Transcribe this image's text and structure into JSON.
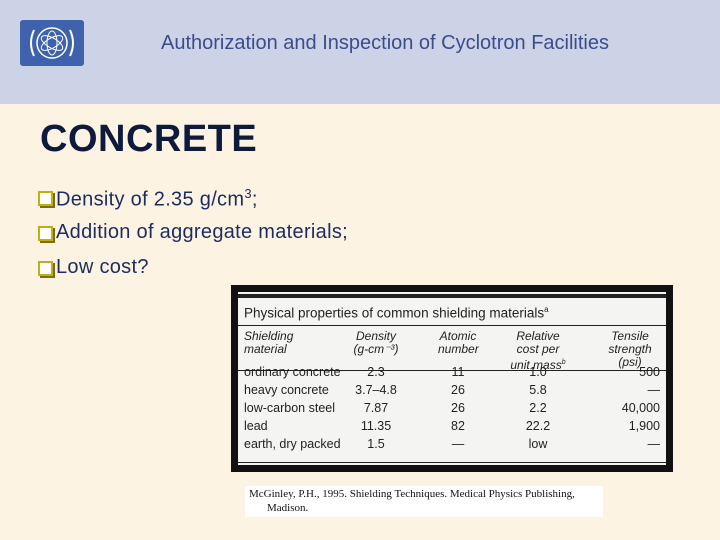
{
  "header": {
    "title": "Authorization and Inspection of Cyclotron Facilities"
  },
  "slide": {
    "heading": "CONCRETE",
    "bullets": [
      {
        "text": "Density of 2.35 g/cm",
        "sup": "3",
        "tail": ";"
      },
      {
        "text": "Addition of aggregate materials;"
      },
      {
        "text": "Low cost?"
      }
    ]
  },
  "table": {
    "title": "Physical properties of common shielding materials",
    "title_note": "a",
    "columns": [
      {
        "lines": [
          "Shielding",
          "material"
        ]
      },
      {
        "lines": [
          "Density",
          "(g-cm⁻³)"
        ]
      },
      {
        "lines": [
          "Atomic",
          "number"
        ]
      },
      {
        "lines": [
          "Relative",
          "cost per",
          "unit mass"
        ],
        "note": "b"
      },
      {
        "lines": [
          "Tensile",
          "strength",
          "(psi)"
        ]
      }
    ],
    "rows": [
      [
        "ordinary concrete",
        "2.3",
        "11",
        "1.0",
        "500"
      ],
      [
        "heavy concrete",
        "3.7–4.8",
        "26",
        "5.8",
        "—"
      ],
      [
        "low-carbon steel",
        "7.87",
        "26",
        "2.2",
        "40,000"
      ],
      [
        "lead",
        "11.35",
        "82",
        "22.2",
        "1,900"
      ],
      [
        "earth, dry packed",
        "1.5",
        "—",
        "low",
        "—"
      ]
    ]
  },
  "citation": {
    "lines": [
      "McGinley, P.H., 1995. Shielding Techniques. Medical Physics Publishing,",
      "Madison."
    ]
  }
}
